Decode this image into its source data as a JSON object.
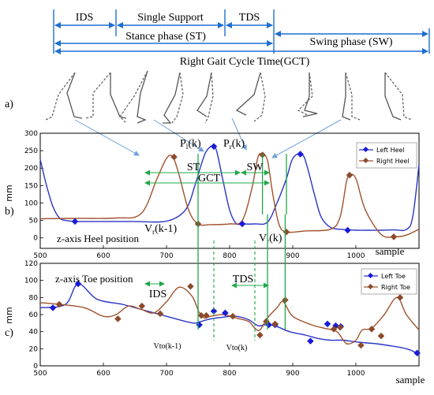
{
  "colors": {
    "phase_blue": "#1f6fd1",
    "left_curve": "#2b35c4",
    "right_curve": "#a0522d",
    "left_marker": "#1a1ad8",
    "right_marker": "#8b4a2b",
    "event_green": "#21a84a"
  },
  "phases": {
    "ids": "IDS",
    "single_support": "Single Support",
    "tds": "TDS",
    "stance": "Stance phase (ST)",
    "swing": "Swing phase (SW)",
    "gct": "Right Gait Cycle Time(GCT)"
  },
  "panel_labels": {
    "a": "a)",
    "b": "b)",
    "c": "c)"
  },
  "heel_chart": {
    "caption": "z-axis Heel position",
    "ylabel": "mm",
    "xlabel": "sample",
    "legend": [
      "Left Heel",
      "Right Heel"
    ],
    "annotations": {
      "p_l": "P",
      "p_l_sub": "l",
      "p_l_tail": "(k)",
      "p_r": "P",
      "p_r_sub": "r",
      "p_r_tail": "(k)",
      "v_r_prev": "V",
      "v_r_prev_sub": "r",
      "v_r_prev_tail": "(k-1)",
      "v_r": "V",
      "v_r_sub": "r",
      "v_r_tail": "(k)",
      "st": "ST",
      "sw": "SW",
      "gct": "GCT"
    }
  },
  "toe_chart": {
    "caption": "z-axis Toe position",
    "ylabel": "mm",
    "xlabel": "sample",
    "legend": [
      "Left Toe",
      "Right Toe"
    ],
    "annotations": {
      "ids": "IDS",
      "tds": "TDS",
      "vto_prev": "Vto(k-1)",
      "vto": "Vto(k)"
    }
  },
  "chart_data": [
    {
      "type": "line",
      "xlabel": "sample",
      "ylabel": "mm",
      "xlim": [
        500,
        1100
      ],
      "ylim": [
        -30,
        300
      ],
      "xticks": [
        500,
        600,
        700,
        800,
        900,
        1000
      ],
      "yticks": [
        300,
        250,
        200,
        150,
        100,
        50,
        0
      ],
      "legend_position": "top-right",
      "series": [
        {
          "name": "Left Heel",
          "x": [
            500,
            510,
            520,
            530,
            540,
            555,
            570,
            600,
            650,
            700,
            730,
            745,
            755,
            762,
            770,
            775,
            780,
            790,
            800,
            810,
            820,
            840,
            860,
            875,
            890,
            898,
            905,
            912,
            918,
            925,
            935,
            945,
            960,
            980,
            1000,
            1020,
            1040,
            1060,
            1080,
            1090,
            1100
          ],
          "y": [
            225,
            150,
            90,
            58,
            50,
            47,
            47,
            47,
            47,
            48,
            80,
            150,
            210,
            245,
            262,
            262,
            245,
            160,
            80,
            42,
            40,
            40,
            45,
            100,
            170,
            220,
            238,
            240,
            232,
            190,
            120,
            60,
            30,
            24,
            22,
            22,
            22,
            23,
            24,
            60,
            210
          ]
        },
        {
          "name": "Right Heel",
          "x": [
            500,
            560,
            620,
            660,
            685,
            700,
            710,
            720,
            735,
            750,
            770,
            800,
            820,
            835,
            845,
            852,
            860,
            868,
            878,
            890,
            920,
            960,
            975,
            985,
            990,
            1000,
            1015,
            1040,
            1060,
            1080,
            1100
          ],
          "y": [
            55,
            56,
            57,
            70,
            170,
            228,
            232,
            180,
            80,
            40,
            38,
            40,
            50,
            140,
            232,
            238,
            222,
            130,
            40,
            17,
            20,
            25,
            60,
            160,
            180,
            170,
            80,
            10,
            3,
            8,
            25
          ]
        }
      ],
      "markers": [
        {
          "series": "Left Heel",
          "x": 555,
          "y": 47
        },
        {
          "series": "Left Heel",
          "x": 775,
          "y": 262
        },
        {
          "series": "Left Heel",
          "x": 820,
          "y": 40
        },
        {
          "series": "Left Heel",
          "x": 912,
          "y": 240
        },
        {
          "series": "Left Heel",
          "x": 987,
          "y": 22
        },
        {
          "series": "Right Heel",
          "x": 712,
          "y": 232
        },
        {
          "series": "Right Heel",
          "x": 750,
          "y": 40
        },
        {
          "series": "Right Heel",
          "x": 852,
          "y": 238
        },
        {
          "series": "Right Heel",
          "x": 890,
          "y": 17
        },
        {
          "series": "Right Heel",
          "x": 990,
          "y": 180
        },
        {
          "series": "Right Heel",
          "x": 1060,
          "y": 3
        }
      ],
      "event_lines_x": [
        750,
        852,
        890
      ]
    },
    {
      "type": "line",
      "xlabel": "sample",
      "ylabel": "mm",
      "xlim": [
        500,
        1100
      ],
      "ylim": [
        0,
        120
      ],
      "xticks": [
        500,
        600,
        700,
        800,
        900,
        1000
      ],
      "yticks": [
        120,
        100,
        80,
        60,
        40,
        20,
        0
      ],
      "legend_position": "top-right",
      "series": [
        {
          "name": "Left Toe",
          "x": [
            500,
            540,
            560,
            590,
            630,
            660,
            700,
            730,
            745,
            755,
            770,
            790,
            810,
            830,
            845,
            855,
            865,
            875,
            895,
            920,
            940,
            960,
            980,
            1000,
            1030,
            1050,
            1080,
            1100
          ],
          "y": [
            68,
            72,
            96,
            78,
            72,
            66,
            58,
            52,
            50,
            52,
            55,
            57,
            58,
            54,
            47,
            48,
            48,
            46,
            40,
            36,
            32,
            30,
            30,
            28,
            26,
            24,
            20,
            14
          ]
        },
        {
          "name": "Right Toe",
          "x": [
            500,
            530,
            570,
            600,
            620,
            640,
            660,
            680,
            700,
            720,
            740,
            752,
            760,
            770,
            790,
            810,
            830,
            840,
            848,
            860,
            875,
            885,
            900,
            930,
            950,
            970,
            985,
            1000,
            1010,
            1025,
            1045,
            1065,
            1080,
            1100
          ],
          "y": [
            74,
            72,
            68,
            58,
            60,
            70,
            66,
            62,
            75,
            92,
            82,
            62,
            56,
            58,
            60,
            56,
            52,
            44,
            42,
            56,
            68,
            75,
            58,
            48,
            44,
            40,
            26,
            30,
            42,
            44,
            60,
            80,
            60,
            42
          ]
        }
      ],
      "markers": [
        {
          "series": "Left Toe",
          "x": 520,
          "y": 68
        },
        {
          "series": "Left Toe",
          "x": 560,
          "y": 96
        },
        {
          "series": "Left Toe",
          "x": 752,
          "y": 48
        },
        {
          "series": "Left Toe",
          "x": 775,
          "y": 64
        },
        {
          "series": "Left Toe",
          "x": 793,
          "y": 62
        },
        {
          "series": "Left Toe",
          "x": 862,
          "y": 48
        },
        {
          "series": "Left Toe",
          "x": 872,
          "y": 48
        },
        {
          "series": "Left Toe",
          "x": 928,
          "y": 29
        },
        {
          "series": "Left Toe",
          "x": 955,
          "y": 49
        },
        {
          "series": "Left Toe",
          "x": 968,
          "y": 47
        },
        {
          "series": "Left Toe",
          "x": 976,
          "y": 46
        },
        {
          "series": "Left Toe",
          "x": 1097,
          "y": 15
        },
        {
          "series": "Right Toe",
          "x": 530,
          "y": 72
        },
        {
          "series": "Right Toe",
          "x": 623,
          "y": 55
        },
        {
          "series": "Right Toe",
          "x": 661,
          "y": 70
        },
        {
          "series": "Right Toe",
          "x": 690,
          "y": 61
        },
        {
          "series": "Right Toe",
          "x": 738,
          "y": 93
        },
        {
          "series": "Right Toe",
          "x": 755,
          "y": 59
        },
        {
          "series": "Right Toe",
          "x": 763,
          "y": 59
        },
        {
          "series": "Right Toe",
          "x": 805,
          "y": 58
        },
        {
          "series": "Right Toe",
          "x": 848,
          "y": 36
        },
        {
          "series": "Right Toe",
          "x": 858,
          "y": 52
        },
        {
          "series": "Right Toe",
          "x": 872,
          "y": 49
        },
        {
          "series": "Right Toe",
          "x": 888,
          "y": 77
        },
        {
          "series": "Right Toe",
          "x": 965,
          "y": 43
        },
        {
          "series": "Right Toe",
          "x": 975,
          "y": 45
        },
        {
          "series": "Right Toe",
          "x": 1008,
          "y": 24
        },
        {
          "series": "Right Toe",
          "x": 1025,
          "y": 43
        },
        {
          "series": "Right Toe",
          "x": 1040,
          "y": 35
        },
        {
          "series": "Right Toe",
          "x": 1070,
          "y": 80
        }
      ],
      "event_lines_x": [
        750,
        860,
        888
      ],
      "dashed_lines_x": [
        775,
        840
      ]
    }
  ]
}
